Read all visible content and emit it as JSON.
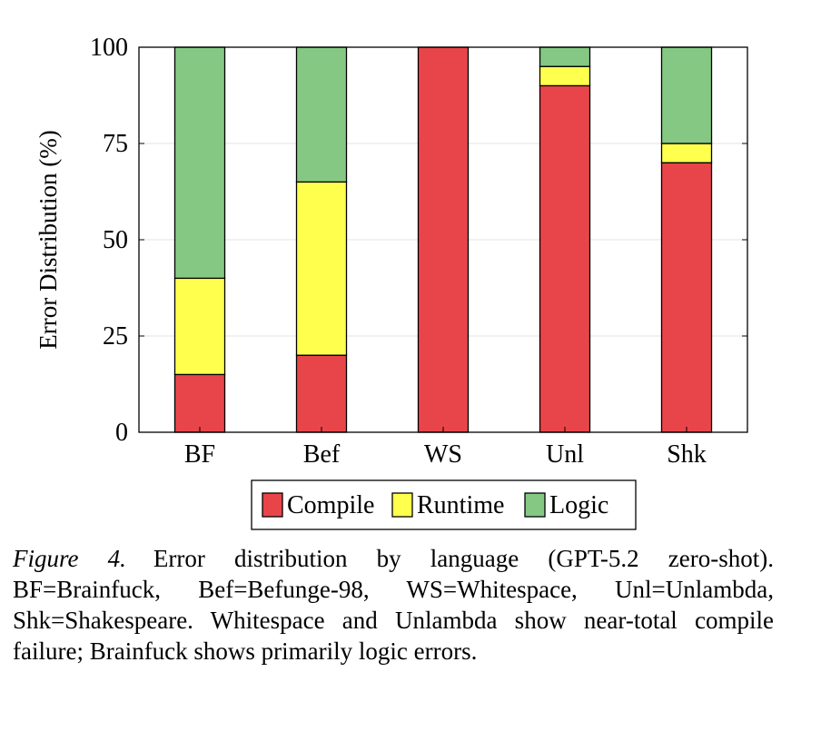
{
  "chart_data": {
    "type": "bar",
    "stacked": true,
    "categories": [
      "BF",
      "Bef",
      "WS",
      "Unl",
      "Shk"
    ],
    "series": [
      {
        "name": "Compile",
        "color": "#e8454a",
        "values": [
          15,
          20,
          100,
          90,
          70
        ]
      },
      {
        "name": "Runtime",
        "color": "#ffff4d",
        "values": [
          25,
          45,
          0,
          5,
          5
        ]
      },
      {
        "name": "Logic",
        "color": "#84c884",
        "values": [
          60,
          35,
          0,
          5,
          25
        ]
      }
    ],
    "ylabel": "Error Distribution (%)",
    "xlabel": "",
    "ylim": [
      0,
      100
    ],
    "yticks": [
      "0",
      "25",
      "50",
      "75",
      "100"
    ],
    "ytick_values": [
      0,
      25,
      50,
      75,
      100
    ],
    "legend_position": "bottom-center"
  },
  "caption": {
    "label": "Figure 4.",
    "text": "Error distribution by language (GPT-5.2 zero-shot). BF=Brainfuck, Bef=Befunge-98, WS=Whitespace, Unl=Unlambda, Shk=Shakespeare. Whitespace and Unlambda show near-total compile failure; Brainfuck shows primarily logic errors."
  }
}
